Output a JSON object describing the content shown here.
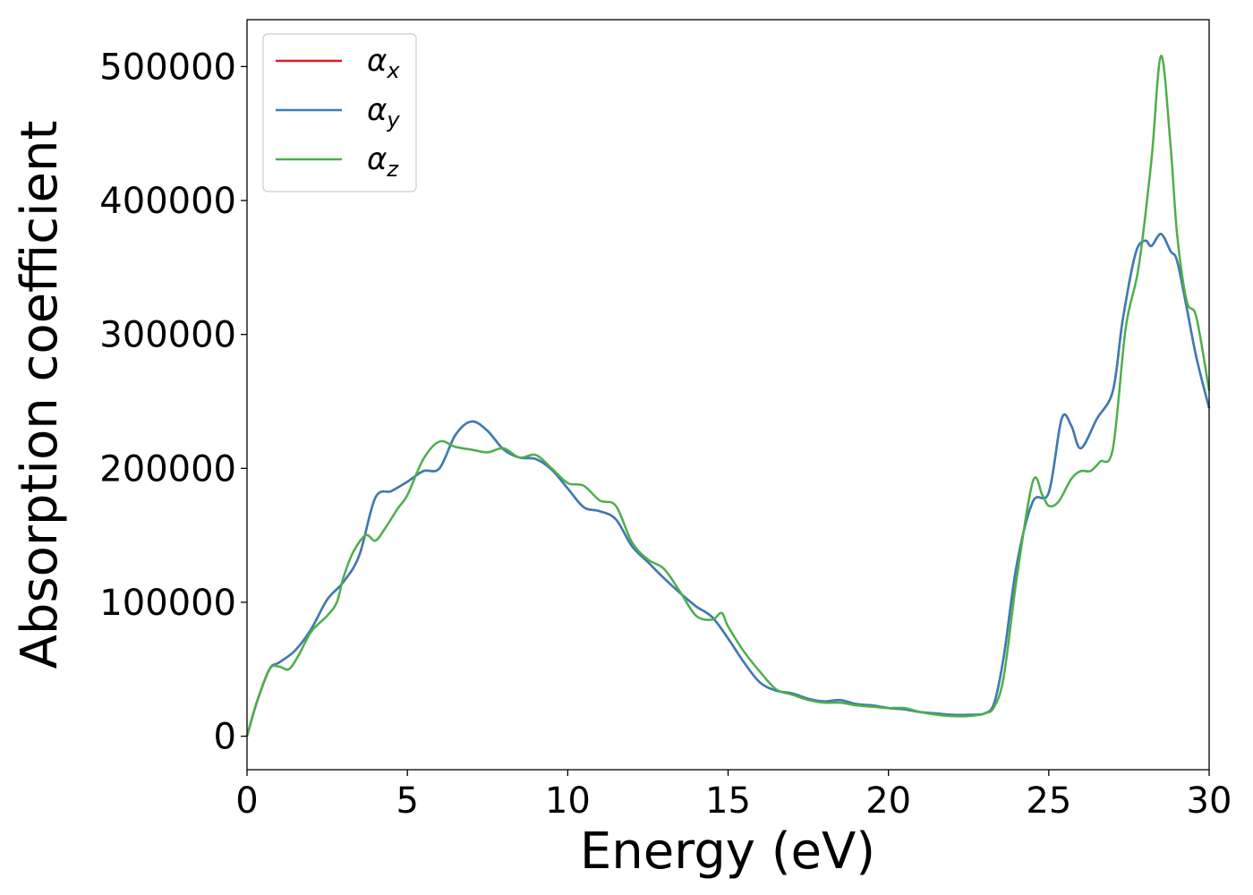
{
  "chart_data": {
    "type": "line",
    "xlabel": "Energy (eV)",
    "ylabel": "Absorption coefficient",
    "xlim": [
      0,
      30
    ],
    "ylim": [
      -25000,
      535000
    ],
    "xticks": [
      0,
      5,
      10,
      15,
      20,
      25,
      30
    ],
    "yticks": [
      0,
      100000,
      200000,
      300000,
      400000,
      500000
    ],
    "xtick_labels": [
      "0",
      "5",
      "10",
      "15",
      "20",
      "25",
      "30"
    ],
    "ytick_labels": [
      "0",
      "100000",
      "200000",
      "300000",
      "400000",
      "500000"
    ],
    "grid": false,
    "legend_position": "top-left",
    "series": [
      {
        "name": "αx",
        "legend_base": "α",
        "legend_sub": "x",
        "color": "#e41a1c",
        "x": [
          0,
          0.3,
          0.7,
          1.0,
          1.5,
          2.0,
          2.5,
          3.0,
          3.5,
          4.0,
          4.5,
          5.0,
          5.5,
          6.0,
          6.5,
          7.0,
          7.5,
          8.0,
          8.5,
          9.0,
          9.5,
          10.0,
          10.5,
          11.0,
          11.5,
          12.0,
          12.5,
          13.0,
          13.5,
          14.0,
          14.5,
          15.0,
          15.5,
          16.0,
          16.5,
          17.0,
          17.5,
          18.0,
          18.5,
          19.0,
          19.5,
          20.0,
          20.5,
          21.0,
          21.5,
          22.0,
          22.5,
          23.0,
          23.3,
          23.6,
          24.0,
          24.5,
          25.0,
          25.4,
          25.7,
          26.0,
          26.5,
          27.0,
          27.3,
          27.7,
          28.0,
          28.2,
          28.5,
          28.8,
          29.0,
          29.3,
          29.6,
          30.0
        ],
        "y": [
          0,
          25000,
          50000,
          55000,
          64000,
          80000,
          102000,
          115000,
          135000,
          178000,
          183000,
          190000,
          198000,
          200000,
          225000,
          235000,
          228000,
          214000,
          208000,
          207000,
          199000,
          185000,
          171000,
          168000,
          162000,
          142000,
          130000,
          118000,
          107000,
          97000,
          89000,
          73000,
          55000,
          40000,
          34000,
          32000,
          28000,
          26000,
          27000,
          24000,
          23000,
          21000,
          20000,
          18000,
          17000,
          16000,
          16000,
          17000,
          25000,
          60000,
          128000,
          175000,
          182000,
          237000,
          232000,
          215000,
          237000,
          258000,
          310000,
          360000,
          370000,
          366000,
          375000,
          362000,
          355000,
          320000,
          283000,
          245000
        ]
      },
      {
        "name": "αy",
        "legend_base": "α",
        "legend_sub": "y",
        "color": "#377eb8",
        "x": [
          0,
          0.3,
          0.7,
          1.0,
          1.5,
          2.0,
          2.5,
          3.0,
          3.5,
          4.0,
          4.5,
          5.0,
          5.5,
          6.0,
          6.5,
          7.0,
          7.5,
          8.0,
          8.5,
          9.0,
          9.5,
          10.0,
          10.5,
          11.0,
          11.5,
          12.0,
          12.5,
          13.0,
          13.5,
          14.0,
          14.5,
          15.0,
          15.5,
          16.0,
          16.5,
          17.0,
          17.5,
          18.0,
          18.5,
          19.0,
          19.5,
          20.0,
          20.5,
          21.0,
          21.5,
          22.0,
          22.5,
          23.0,
          23.3,
          23.6,
          24.0,
          24.5,
          25.0,
          25.4,
          25.7,
          26.0,
          26.5,
          27.0,
          27.3,
          27.7,
          28.0,
          28.2,
          28.5,
          28.8,
          29.0,
          29.3,
          29.6,
          30.0
        ],
        "y": [
          0,
          25000,
          50000,
          55000,
          64000,
          80000,
          102000,
          115000,
          135000,
          178000,
          183000,
          190000,
          198000,
          200000,
          225000,
          235000,
          228000,
          214000,
          208000,
          207000,
          199000,
          185000,
          171000,
          168000,
          162000,
          142000,
          130000,
          118000,
          107000,
          97000,
          89000,
          73000,
          55000,
          40000,
          34000,
          32000,
          28000,
          26000,
          27000,
          24000,
          23000,
          21000,
          20000,
          18000,
          17000,
          16000,
          16000,
          17000,
          25000,
          60000,
          128000,
          175000,
          182000,
          237000,
          232000,
          215000,
          237000,
          258000,
          310000,
          360000,
          370000,
          366000,
          375000,
          362000,
          355000,
          320000,
          283000,
          245000
        ]
      },
      {
        "name": "αz",
        "legend_base": "α",
        "legend_sub": "z",
        "color": "#4daf4a",
        "x": [
          0,
          0.3,
          0.7,
          1.0,
          1.3,
          1.6,
          2.0,
          2.5,
          2.8,
          3.0,
          3.3,
          3.7,
          4.0,
          4.3,
          4.7,
          5.0,
          5.5,
          6.0,
          6.5,
          7.0,
          7.5,
          8.0,
          8.5,
          9.0,
          9.5,
          10.0,
          10.5,
          11.0,
          11.5,
          12.0,
          12.5,
          13.0,
          13.5,
          14.0,
          14.5,
          14.8,
          15.0,
          15.5,
          16.0,
          16.5,
          17.0,
          17.5,
          18.0,
          18.5,
          19.0,
          19.5,
          20.0,
          20.5,
          21.0,
          21.5,
          22.0,
          22.5,
          23.0,
          23.3,
          23.6,
          24.0,
          24.5,
          24.8,
          25.0,
          25.3,
          25.7,
          26.0,
          26.3,
          26.6,
          27.0,
          27.4,
          27.8,
          28.2,
          28.5,
          28.8,
          29.0,
          29.3,
          29.6,
          30.0
        ],
        "y": [
          0,
          25000,
          50000,
          52000,
          50000,
          60000,
          78000,
          90000,
          100000,
          118000,
          137000,
          150000,
          146000,
          155000,
          170000,
          180000,
          207000,
          220000,
          216000,
          214000,
          212000,
          215000,
          208000,
          210000,
          200000,
          189000,
          187000,
          176000,
          172000,
          145000,
          132000,
          125000,
          108000,
          90000,
          87000,
          92000,
          82000,
          63000,
          48000,
          35000,
          31000,
          27000,
          25000,
          25000,
          23000,
          22000,
          21000,
          21000,
          18000,
          16000,
          15000,
          15000,
          17000,
          22000,
          45000,
          118000,
          190000,
          180000,
          172000,
          175000,
          192000,
          198000,
          198000,
          205000,
          215000,
          305000,
          350000,
          430000,
          508000,
          440000,
          375000,
          325000,
          313000,
          258000
        ]
      }
    ]
  }
}
